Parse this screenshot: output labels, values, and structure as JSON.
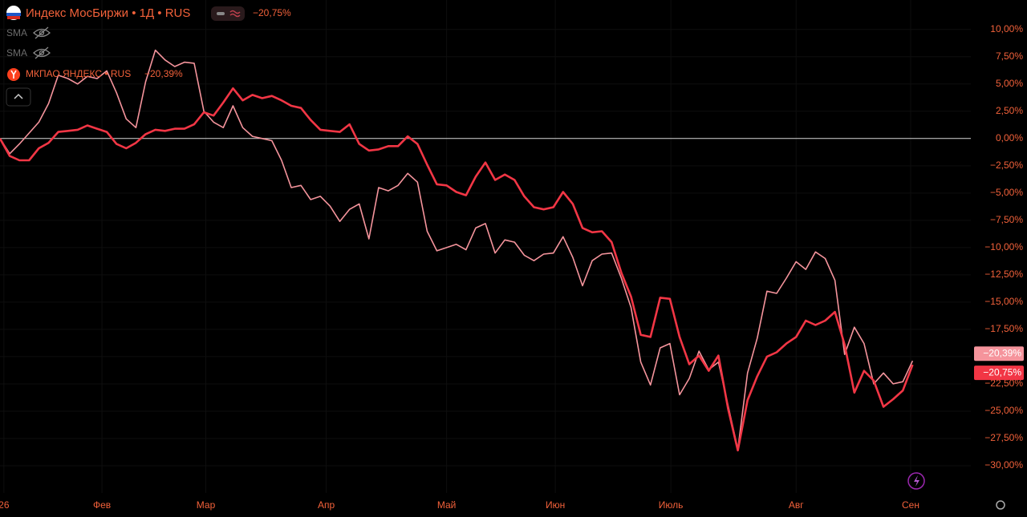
{
  "chart_data": {
    "type": "line",
    "indicators": [
      "SMA",
      "SMA"
    ],
    "xlim": [
      0,
      100
    ],
    "xticks": [
      {
        "value": 0.4,
        "label": "26"
      },
      {
        "value": 10.5,
        "label": "Фев"
      },
      {
        "value": 21.2,
        "label": "Мар"
      },
      {
        "value": 33.6,
        "label": "Апр"
      },
      {
        "value": 46,
        "label": "Май"
      },
      {
        "value": 57.2,
        "label": "Июн"
      },
      {
        "value": 69.1,
        "label": "Июль"
      },
      {
        "value": 82,
        "label": "Авг"
      },
      {
        "value": 93.8,
        "label": "Сен"
      }
    ],
    "ylim": [
      -32.5,
      12.7
    ],
    "yticks": [
      {
        "value": 10,
        "label": "10,00%"
      },
      {
        "value": 7.5,
        "label": "7,50%"
      },
      {
        "value": 5,
        "label": "5,00%"
      },
      {
        "value": 2.5,
        "label": "2,50%"
      },
      {
        "value": 0,
        "label": "0,00%"
      },
      {
        "value": -2.5,
        "label": "−2,50%"
      },
      {
        "value": -5,
        "label": "−5,00%"
      },
      {
        "value": -7.5,
        "label": "−7,50%"
      },
      {
        "value": -10,
        "label": "−10,00%"
      },
      {
        "value": -12.5,
        "label": "−12,50%"
      },
      {
        "value": -15,
        "label": "−15,00%"
      },
      {
        "value": -17.5,
        "label": "−17,50%"
      },
      {
        "value": -20,
        "label": "−20,00%"
      },
      {
        "value": -22.5,
        "label": "−22,50%"
      },
      {
        "value": -25,
        "label": "−25,00%"
      },
      {
        "value": -27.5,
        "label": "−27,50%"
      },
      {
        "value": -30,
        "label": "−30,00%"
      }
    ],
    "grid": true,
    "series": [
      {
        "name": "Индекс МосБиржи • 1Д • RUS",
        "color": "#f23645",
        "last_label": "−20,75%",
        "values": [
          0,
          -1.6,
          -2.0,
          -2.0,
          -0.9,
          -0.4,
          0.6,
          0.7,
          0.8,
          1.2,
          0.9,
          0.6,
          -0.5,
          -0.9,
          -0.4,
          0.4,
          0.8,
          0.7,
          0.9,
          0.9,
          1.3,
          2.4,
          2.1,
          3.3,
          4.6,
          3.5,
          4.0,
          3.7,
          3.9,
          3.5,
          3.0,
          2.8,
          1.7,
          0.8,
          0.7,
          0.6,
          1.3,
          -0.5,
          -1.1,
          -1.0,
          -0.7,
          -0.7,
          0.2,
          -0.5,
          -2.4,
          -4.2,
          -4.3,
          -4.9,
          -5.2,
          -3.5,
          -2.2,
          -3.8,
          -3.3,
          -3.8,
          -5.3,
          -6.3,
          -6.5,
          -6.3,
          -4.9,
          -6.0,
          -8.2,
          -8.6,
          -8.5,
          -9.5,
          -12.3,
          -14.5,
          -18.0,
          -18.2,
          -14.6,
          -14.7,
          -18.2,
          -20.7,
          -19.9,
          -21.3,
          -19.9,
          -24.8,
          -28.6,
          -24.0,
          -21.8,
          -20.0,
          -19.6,
          -18.8,
          -18.2,
          -16.7,
          -17.1,
          -16.7,
          -15.9,
          -18.9,
          -23.3,
          -21.3,
          -22.2,
          -24.6,
          -23.9,
          -23.1,
          -20.75
        ]
      },
      {
        "name": "МКПАО ЯНДЕКС • RUS",
        "color": "#f5949c",
        "last_label": "−20,39%",
        "values": [
          0,
          -1.4,
          -0.5,
          0.5,
          1.5,
          3.2,
          5.8,
          5.5,
          5.0,
          5.7,
          5.5,
          6.2,
          4.2,
          1.8,
          1.0,
          5.2,
          8.1,
          7.2,
          6.6,
          7.0,
          6.9,
          2.5,
          1.5,
          1.0,
          3.0,
          1.0,
          0.2,
          0.0,
          -0.2,
          -2.0,
          -4.5,
          -4.3,
          -5.6,
          -5.3,
          -6.2,
          -7.6,
          -6.5,
          -6.0,
          -9.2,
          -4.5,
          -4.8,
          -4.3,
          -3.2,
          -4.0,
          -8.5,
          -10.3,
          -10.0,
          -9.7,
          -10.2,
          -8.2,
          -7.8,
          -10.5,
          -9.3,
          -9.5,
          -10.7,
          -11.2,
          -10.6,
          -10.5,
          -9.0,
          -10.9,
          -13.5,
          -11.2,
          -10.6,
          -10.5,
          -12.8,
          -15.5,
          -20.5,
          -22.6,
          -19.2,
          -18.8,
          -23.5,
          -22.0,
          -19.5,
          -21.2,
          -20.5,
          -24.5,
          -28.5,
          -21.5,
          -18.3,
          -14.0,
          -14.2,
          -12.8,
          -11.3,
          -12.0,
          -10.4,
          -11.0,
          -13.0,
          -19.8,
          -17.3,
          -18.8,
          -22.5,
          -21.5,
          -22.5,
          -22.3,
          -20.39
        ]
      }
    ]
  }
}
